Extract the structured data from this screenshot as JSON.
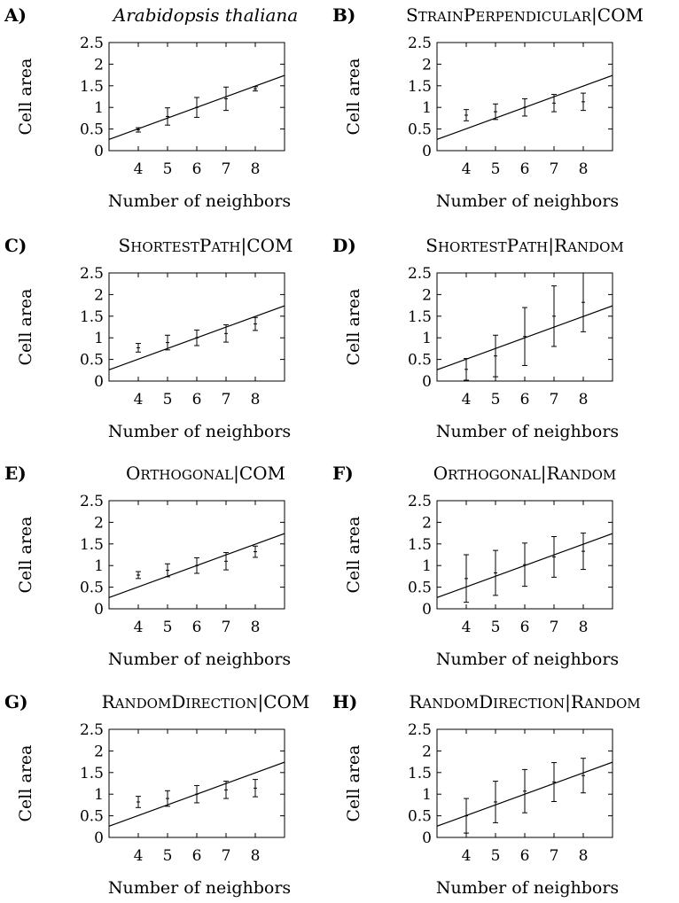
{
  "common": {
    "xlabel": "Number of neighbors",
    "ylabel": "Cell area",
    "y_ticks": [
      "0",
      "0.5",
      "1",
      "1.5",
      "2",
      "2.5"
    ],
    "x_ticks": [
      "4",
      "5",
      "6",
      "7",
      "8"
    ]
  },
  "chart_data": [
    {
      "label": "A)",
      "title": "Arabidopsis thaliana",
      "title_style": "italic",
      "type": "scatter",
      "xlim": [
        3,
        9
      ],
      "ylim": [
        0,
        2.5
      ],
      "xlabel": "Number of neighbors",
      "ylabel": "Cell area",
      "x": [
        4,
        5,
        6,
        7,
        8
      ],
      "y": [
        0.48,
        0.79,
        1.0,
        1.2,
        1.43
      ],
      "err": [
        0.05,
        0.2,
        0.23,
        0.27,
        0.05
      ],
      "fit_line": {
        "x": [
          3,
          9
        ],
        "y": [
          0.26,
          1.74
        ]
      }
    },
    {
      "label": "B)",
      "title": "StrainPerpendicular|COM",
      "title_style": "smallcaps",
      "type": "scatter",
      "xlim": [
        3,
        9
      ],
      "ylim": [
        0,
        2.5
      ],
      "xlabel": "Number of neighbors",
      "ylabel": "Cell area",
      "x": [
        4,
        5,
        6,
        7,
        8
      ],
      "y": [
        0.82,
        0.9,
        1.0,
        1.1,
        1.13
      ],
      "err": [
        0.13,
        0.18,
        0.2,
        0.2,
        0.2
      ],
      "fit_line": {
        "x": [
          3,
          9
        ],
        "y": [
          0.26,
          1.74
        ]
      }
    },
    {
      "label": "C)",
      "title": "ShortestPath|COM",
      "title_style": "smallcaps",
      "type": "scatter",
      "xlim": [
        3,
        9
      ],
      "ylim": [
        0,
        2.5
      ],
      "xlabel": "Number of neighbors",
      "ylabel": "Cell area",
      "x": [
        4,
        5,
        6,
        7,
        8
      ],
      "y": [
        0.77,
        0.89,
        1.0,
        1.1,
        1.32
      ],
      "err": [
        0.1,
        0.17,
        0.18,
        0.2,
        0.15
      ],
      "fit_line": {
        "x": [
          3,
          9
        ],
        "y": [
          0.26,
          1.74
        ]
      }
    },
    {
      "label": "D)",
      "title": "ShortestPath|Random",
      "title_style": "smallcaps",
      "type": "scatter",
      "xlim": [
        3,
        9
      ],
      "ylim": [
        0,
        2.5
      ],
      "xlabel": "Number of neighbors",
      "ylabel": "Cell area",
      "x": [
        4,
        5,
        6,
        7,
        8
      ],
      "y": [
        0.27,
        0.58,
        1.03,
        1.5,
        1.82
      ],
      "err": [
        0.25,
        0.48,
        0.67,
        0.7,
        0.68
      ],
      "fit_line": {
        "x": [
          3,
          9
        ],
        "y": [
          0.26,
          1.74
        ]
      }
    },
    {
      "label": "E)",
      "title": "Orthogonal|COM",
      "title_style": "smallcaps",
      "type": "scatter",
      "xlim": [
        3,
        9
      ],
      "ylim": [
        0,
        2.5
      ],
      "xlabel": "Number of neighbors",
      "ylabel": "Cell area",
      "x": [
        4,
        5,
        6,
        7,
        8
      ],
      "y": [
        0.78,
        0.89,
        1.0,
        1.1,
        1.32
      ],
      "err": [
        0.08,
        0.15,
        0.18,
        0.2,
        0.13
      ],
      "fit_line": {
        "x": [
          3,
          9
        ],
        "y": [
          0.26,
          1.74
        ]
      }
    },
    {
      "label": "F)",
      "title": "Orthogonal|Random",
      "title_style": "smallcaps",
      "type": "scatter",
      "xlim": [
        3,
        9
      ],
      "ylim": [
        0,
        2.5
      ],
      "xlabel": "Number of neighbors",
      "ylabel": "Cell area",
      "x": [
        4,
        5,
        6,
        7,
        8
      ],
      "y": [
        0.7,
        0.83,
        1.02,
        1.2,
        1.33
      ],
      "err": [
        0.55,
        0.52,
        0.5,
        0.47,
        0.42
      ],
      "fit_line": {
        "x": [
          3,
          9
        ],
        "y": [
          0.26,
          1.74
        ]
      }
    },
    {
      "label": "G)",
      "title": "RandomDirection|COM",
      "title_style": "smallcaps",
      "type": "scatter",
      "xlim": [
        3,
        9
      ],
      "ylim": [
        0,
        2.5
      ],
      "xlabel": "Number of neighbors",
      "ylabel": "Cell area",
      "x": [
        4,
        5,
        6,
        7,
        8
      ],
      "y": [
        0.82,
        0.9,
        1.0,
        1.1,
        1.14
      ],
      "err": [
        0.13,
        0.18,
        0.2,
        0.2,
        0.2
      ],
      "fit_line": {
        "x": [
          3,
          9
        ],
        "y": [
          0.26,
          1.74
        ]
      }
    },
    {
      "label": "H)",
      "title": "RandomDirection|Random",
      "title_style": "smallcaps",
      "type": "scatter",
      "xlim": [
        3,
        9
      ],
      "ylim": [
        0,
        2.5
      ],
      "xlabel": "Number of neighbors",
      "ylabel": "Cell area",
      "x": [
        4,
        5,
        6,
        7,
        8
      ],
      "y": [
        0.5,
        0.82,
        1.07,
        1.28,
        1.43
      ],
      "err": [
        0.4,
        0.48,
        0.5,
        0.45,
        0.4
      ],
      "fit_line": {
        "x": [
          3,
          9
        ],
        "y": [
          0.26,
          1.74
        ]
      }
    }
  ]
}
